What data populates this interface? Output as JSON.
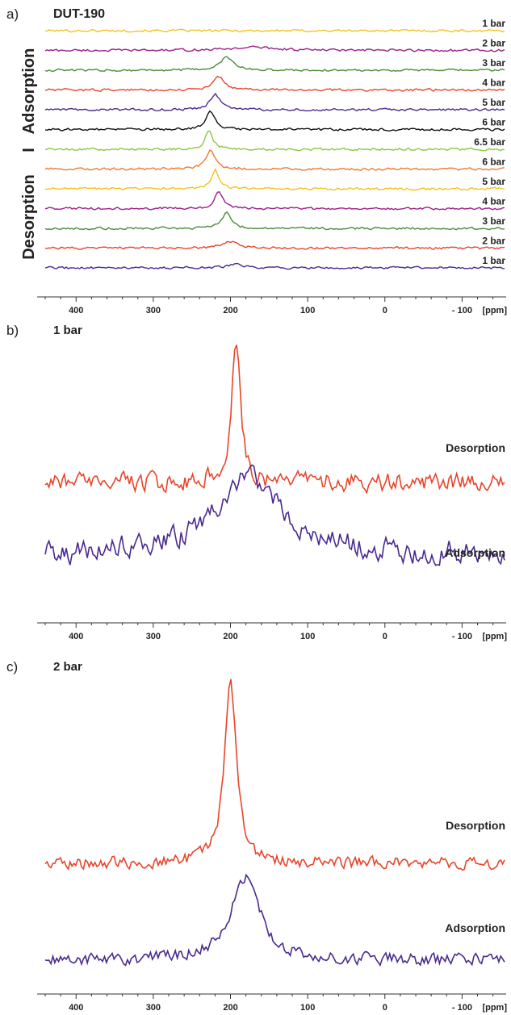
{
  "chart_data": [
    {
      "panel": "a)",
      "type": "line",
      "title": "DUT-190",
      "xlabel": "[ppm]",
      "x_ticks": [
        400,
        300,
        200,
        100,
        0,
        -100
      ],
      "x_tick_labels": [
        "400",
        "300",
        "200",
        "100",
        "0",
        "- 100"
      ],
      "xlim": [
        440,
        -155
      ],
      "side_labels": [
        "Adsorption",
        "I",
        "Desorption"
      ],
      "series": [
        {
          "name": "1 bar",
          "color": "#f5c11f",
          "peak_ppm": null,
          "peak_height": 0,
          "width_ppm": 0
        },
        {
          "name": "2 bar",
          "color": "#9b1f8c",
          "peak_ppm": 170,
          "peak_height": 0.25,
          "width_ppm": 35
        },
        {
          "name": "3 bar",
          "color": "#4e8a3a",
          "peak_ppm": 205,
          "peak_height": 1.0,
          "width_ppm": 10
        },
        {
          "name": "4 bar",
          "color": "#e8452b",
          "peak_ppm": 215,
          "peak_height": 1.0,
          "width_ppm": 9
        },
        {
          "name": "5 bar",
          "color": "#4a2a8f",
          "peak_ppm": 220,
          "peak_height": 1.2,
          "width_ppm": 8
        },
        {
          "name": "6 bar",
          "color": "#111111",
          "peak_ppm": 226,
          "peak_height": 1.4,
          "width_ppm": 7
        },
        {
          "name": "6.5 bar",
          "color": "#8ec63f",
          "peak_ppm": 228,
          "peak_height": 1.4,
          "width_ppm": 6
        },
        {
          "name": "6 bar",
          "color": "#f07a2d",
          "peak_ppm": 226,
          "peak_height": 1.4,
          "width_ppm": 7
        },
        {
          "name": "5 bar",
          "color": "#f5c11f",
          "peak_ppm": 220,
          "peak_height": 1.5,
          "width_ppm": 6
        },
        {
          "name": "4 bar",
          "color": "#9b1f8c",
          "peak_ppm": 215,
          "peak_height": 1.4,
          "width_ppm": 6
        },
        {
          "name": "3 bar",
          "color": "#4e8a3a",
          "peak_ppm": 205,
          "peak_height": 1.2,
          "width_ppm": 7
        },
        {
          "name": "2 bar",
          "color": "#e8452b",
          "peak_ppm": 200,
          "peak_height": 0.5,
          "width_ppm": 12
        },
        {
          "name": "1 bar",
          "color": "#4a2a8f",
          "peak_ppm": 193,
          "peak_height": 0.3,
          "width_ppm": 10
        }
      ]
    },
    {
      "panel": "b)",
      "type": "line",
      "title": "1 bar",
      "xlabel": "[ppm]",
      "x_ticks": [
        400,
        300,
        200,
        100,
        0,
        -100
      ],
      "x_tick_labels": [
        "400",
        "300",
        "200",
        "100",
        "0",
        "- 100"
      ],
      "xlim": [
        440,
        -155
      ],
      "series": [
        {
          "name": "Desorption",
          "color": "#e8452b",
          "peak_ppm": 193,
          "peak_height": 1.0,
          "width_ppm": 7
        },
        {
          "name": "Adsorption",
          "color": "#4a2a8f",
          "peak_ppm": 175,
          "peak_height": 0.55,
          "width_ppm": 55
        }
      ]
    },
    {
      "panel": "c)",
      "type": "line",
      "title": "2 bar",
      "xlabel": "[ppm]",
      "x_ticks": [
        400,
        300,
        200,
        100,
        0,
        -100
      ],
      "x_tick_labels": [
        "400",
        "300",
        "200",
        "100",
        "0",
        "- 100"
      ],
      "xlim": [
        440,
        -155
      ],
      "series": [
        {
          "name": "Desorption",
          "color": "#e8452b",
          "peak_ppm": 200,
          "peak_height": 1.0,
          "width_ppm": 9
        },
        {
          "name": "Adsorption",
          "color": "#4a2a8f",
          "peak_ppm": 180,
          "peak_height": 0.45,
          "width_ppm": 22
        }
      ]
    }
  ]
}
